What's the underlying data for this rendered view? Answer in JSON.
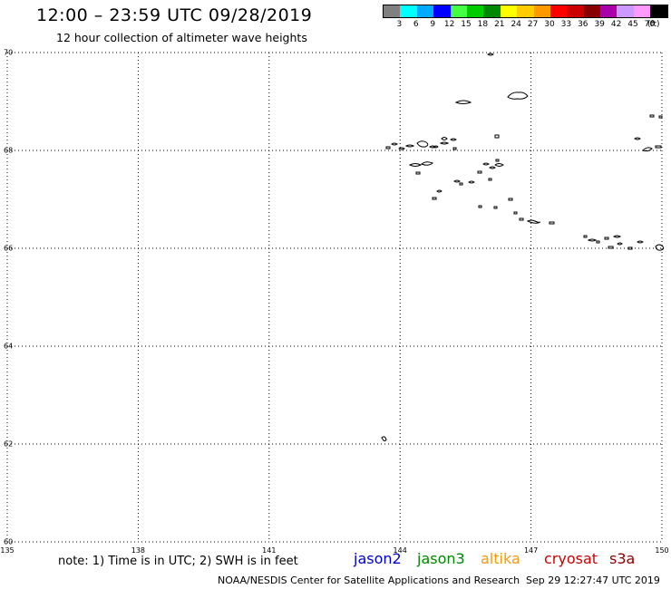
{
  "title": "12:00 – 23:59 UTC 09/28/2019",
  "subtitle": "12 hour collection of altimeter wave heights",
  "colorbar": {
    "colors": [
      "#808080",
      "#00ffff",
      "#00aaff",
      "#0000ff",
      "#44ff44",
      "#00cc00",
      "#008800",
      "#ffff00",
      "#ffcc00",
      "#ff9900",
      "#ff0000",
      "#cc0000",
      "#880000",
      "#aa00aa",
      "#cc99ff",
      "#ff99ff",
      "#000000"
    ],
    "labels": [
      "3",
      "6",
      "9",
      "12",
      "15",
      "18",
      "21",
      "24",
      "27",
      "30",
      "33",
      "36",
      "39",
      "42",
      "45",
      "70"
    ],
    "unit": "(ft)"
  },
  "map": {
    "lat_range": [
      60,
      70
    ],
    "lon_range": [
      135,
      150
    ],
    "grid": "dotted",
    "lat_ticks": [
      "70",
      "68",
      "66",
      "64",
      "62",
      "60"
    ],
    "lon_ticks": [
      "135",
      "138",
      "141",
      "144",
      "147",
      "150"
    ],
    "land_outline_color": "#000000"
  },
  "note": "note:  1) Time is in UTC;  2) SWH is in feet",
  "satellites": [
    {
      "name": "jason2",
      "color": "#0000cc"
    },
    {
      "name": "jason3",
      "color": "#008800"
    },
    {
      "name": "altika",
      "color": "#ff9900"
    },
    {
      "name": "cryosat",
      "color": "#cc0000"
    },
    {
      "name": "s3a",
      "color": "#880000"
    }
  ],
  "footer": {
    "organization": "NOAA/NESDIS Center for Satellite Applications and Research",
    "timestamp": "Sep 29 12:27:47 UTC 2019"
  }
}
